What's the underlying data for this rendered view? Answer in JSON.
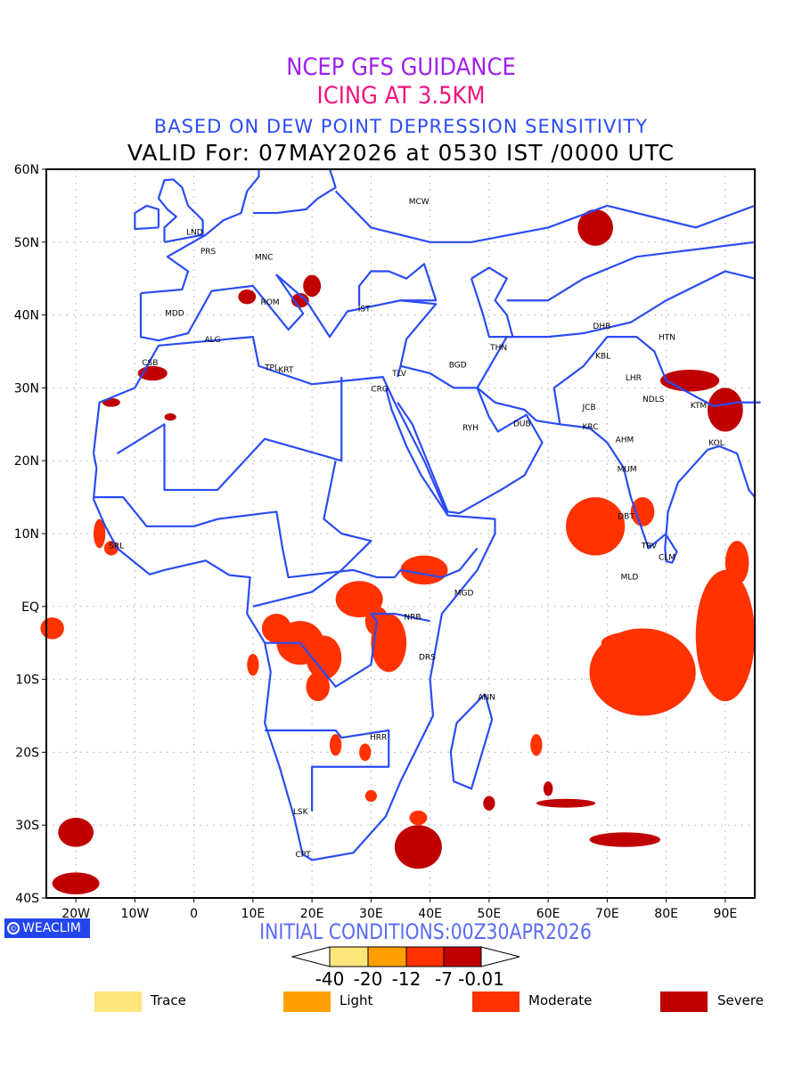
{
  "titles": {
    "line1": "NCEP GFS GUIDANCE",
    "line2": "ICING AT 3.5KM",
    "line3": "BASED ON DEW POINT DEPRESSION SENSITIVITY",
    "line4": "VALID For: 07MAY2026 at 0530 IST /0000 UTC"
  },
  "axes": {
    "lat_labels": [
      "60N",
      "50N",
      "40N",
      "30N",
      "20N",
      "10N",
      "EQ",
      "10S",
      "20S",
      "30S",
      "40S"
    ],
    "lon_labels": [
      "20W",
      "10W",
      "0",
      "10E",
      "20E",
      "30E",
      "40E",
      "50E",
      "60E",
      "70E",
      "80E",
      "90E"
    ]
  },
  "cities": [
    "MCW",
    "LND",
    "PRS",
    "MNC",
    "ROM",
    "IST",
    "MDD",
    "ALG",
    "CSB",
    "TPL",
    "KRT",
    "TLV",
    "CRO",
    "BGD",
    "THN",
    "RYH",
    "DUB",
    "DHB",
    "KBL",
    "HTN",
    "LHR",
    "JCB",
    "NDLS",
    "KTM",
    "KRC",
    "AHM",
    "KOL",
    "MUM",
    "DBT",
    "TRV",
    "CLM",
    "MLD",
    "SRL",
    "MGD",
    "NRB",
    "DRS",
    "ANN",
    "HRR",
    "LSK",
    "CPT"
  ],
  "logo": {
    "symbol": "©",
    "text": "WEACLIM"
  },
  "initial_conditions": "INITIAL CONDITIONS:00Z30APR2026",
  "colorbar": {
    "ticks": [
      "-40",
      "-20",
      "-12",
      "-7",
      "-0.01"
    ]
  },
  "legend": [
    {
      "label": "Trace",
      "color": "#fee67a"
    },
    {
      "label": "Light",
      "color": "#ffa000"
    },
    {
      "label": "Moderate",
      "color": "#ff3200"
    },
    {
      "label": "Severe",
      "color": "#c00000"
    }
  ],
  "colors": {
    "coast": "#2a4cf5",
    "moderate": "#ff3200",
    "severe": "#c00000"
  }
}
